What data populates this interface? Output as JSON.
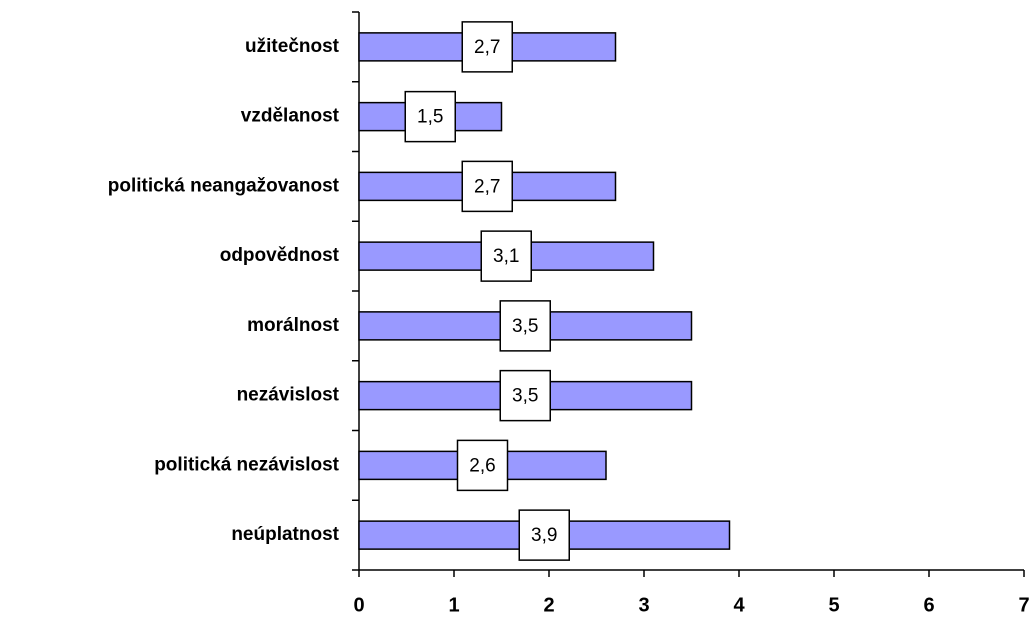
{
  "chart_data": {
    "type": "bar",
    "orientation": "horizontal",
    "categories": [
      "užitečnost",
      "vzdělanost",
      "politická neangažovanost",
      "odpovědnost",
      "morálnost",
      "nezávislost",
      "politická nezávislost",
      "neúplatnost"
    ],
    "values": [
      2.7,
      1.5,
      2.7,
      3.1,
      3.5,
      3.5,
      2.6,
      3.9
    ],
    "value_labels": [
      "2,7",
      "1,5",
      "2,7",
      "3,1",
      "3,5",
      "3,5",
      "2,6",
      "3,9"
    ],
    "color": "#9999ff",
    "xlim": [
      0,
      7
    ],
    "xticks": [
      0,
      1,
      2,
      3,
      4,
      5,
      6,
      7
    ]
  }
}
